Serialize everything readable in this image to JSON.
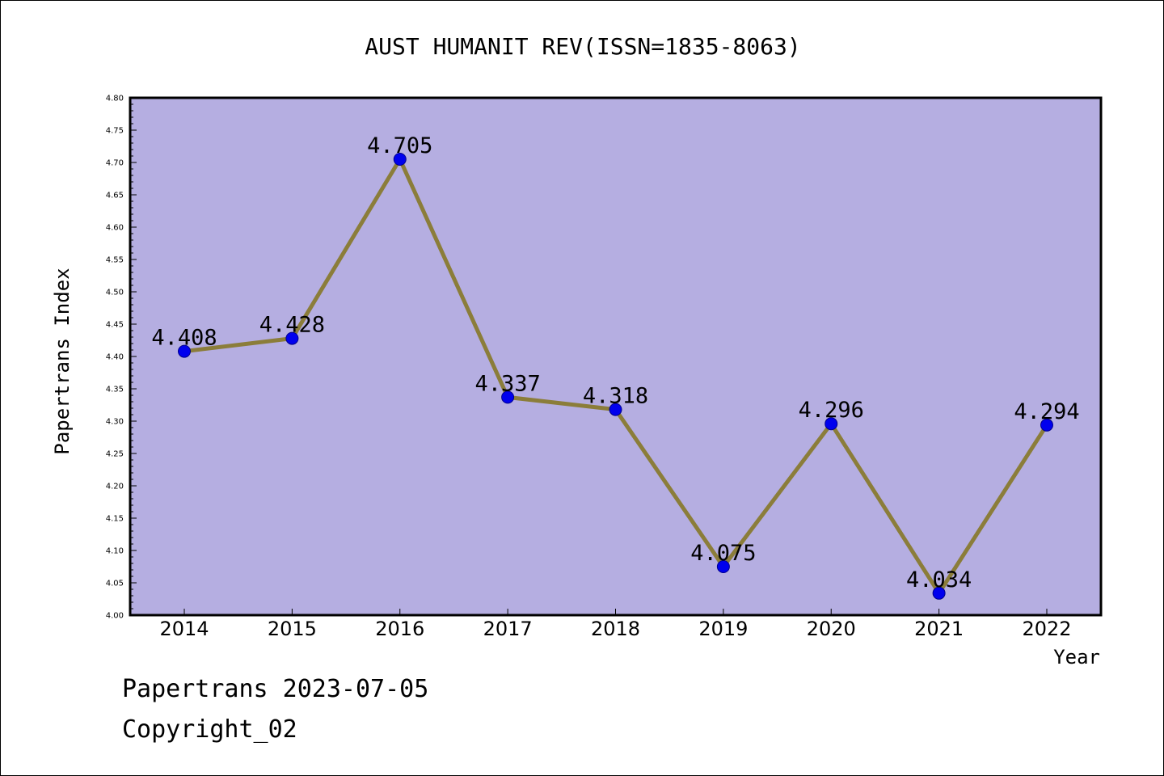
{
  "chart_data": {
    "type": "line",
    "title": "AUST HUMANIT REV(ISSN=1835-8063)",
    "xlabel": "Year",
    "ylabel": "Papertrans Index",
    "categories": [
      "2014",
      "2015",
      "2016",
      "2017",
      "2018",
      "2019",
      "2020",
      "2021",
      "2022"
    ],
    "series": [
      {
        "values": [
          4.408,
          4.428,
          4.705,
          4.337,
          4.318,
          4.075,
          4.296,
          4.034,
          4.294
        ],
        "labels": [
          "4.408",
          "4.428",
          "4.705",
          "4.337",
          "4.318",
          "4.075",
          "4.296",
          "4.034",
          "4.294"
        ]
      }
    ],
    "ylim": [
      4.0,
      4.8
    ],
    "yticks": [
      "4.00",
      "4.05",
      "4.10",
      "4.15",
      "4.20",
      "4.25",
      "4.30",
      "4.35",
      "4.40",
      "4.45",
      "4.50",
      "4.55",
      "4.60",
      "4.65",
      "4.70",
      "4.75",
      "4.80"
    ],
    "grid": false,
    "colors": {
      "plot_background": "#b5aee1",
      "line": "#8b7d3a",
      "marker": "#0000ee",
      "marker_edge": "#00008b"
    }
  },
  "footer": {
    "date_line": "Papertrans 2023-07-05",
    "copyright": "Copyright_02"
  }
}
